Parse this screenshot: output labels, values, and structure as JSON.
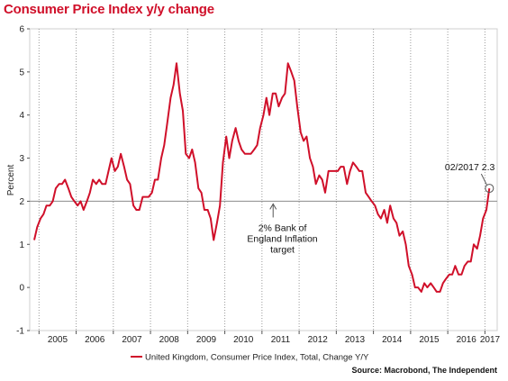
{
  "chart_data": {
    "type": "line",
    "title": "Consumer Price Index y/y change",
    "ylabel": "Percent",
    "ylim": [
      -1,
      6
    ],
    "yticks": [
      "-1",
      "0",
      "1",
      "2",
      "3",
      "4",
      "5",
      "6"
    ],
    "xlim": [
      2004.75,
      2017.33
    ],
    "xticks": [
      "2005",
      "2006",
      "2007",
      "2008",
      "2009",
      "2010",
      "2011",
      "2012",
      "2013",
      "2014",
      "2015",
      "2016",
      "2017"
    ],
    "grid": "vertical dotted",
    "reference_line": {
      "value": 2,
      "label": [
        "2% Bank of",
        "England Inflation",
        "target"
      ]
    },
    "end_annotation": "02/2017 2.3",
    "legend": {
      "placement": "bottom",
      "label": "United Kingdom, Consumer Price Index, Total, Change Y/Y"
    },
    "source": "Source: Macrobond, The Independent",
    "series": [
      {
        "name": "United Kingdom, Consumer Price Index, Total, Change Y/Y",
        "color": "#d0102a",
        "x": [
          2004.87,
          2004.95,
          2005.04,
          2005.12,
          2005.2,
          2005.29,
          2005.37,
          2005.45,
          2005.54,
          2005.62,
          2005.7,
          2005.79,
          2005.87,
          2005.95,
          2006.04,
          2006.12,
          2006.2,
          2006.29,
          2006.37,
          2006.45,
          2006.54,
          2006.62,
          2006.7,
          2006.79,
          2006.87,
          2006.95,
          2007.04,
          2007.12,
          2007.2,
          2007.29,
          2007.37,
          2007.45,
          2007.54,
          2007.62,
          2007.7,
          2007.79,
          2007.87,
          2007.95,
          2008.04,
          2008.12,
          2008.2,
          2008.29,
          2008.37,
          2008.45,
          2008.54,
          2008.62,
          2008.7,
          2008.79,
          2008.87,
          2008.95,
          2009.04,
          2009.12,
          2009.2,
          2009.29,
          2009.37,
          2009.45,
          2009.54,
          2009.62,
          2009.7,
          2009.79,
          2009.87,
          2009.95,
          2010.04,
          2010.12,
          2010.2,
          2010.29,
          2010.37,
          2010.45,
          2010.54,
          2010.62,
          2010.7,
          2010.79,
          2010.87,
          2010.95,
          2011.04,
          2011.12,
          2011.2,
          2011.29,
          2011.37,
          2011.45,
          2011.54,
          2011.62,
          2011.7,
          2011.79,
          2011.87,
          2011.95,
          2012.04,
          2012.12,
          2012.2,
          2012.29,
          2012.37,
          2012.45,
          2012.54,
          2012.62,
          2012.7,
          2012.79,
          2012.87,
          2012.95,
          2013.04,
          2013.12,
          2013.2,
          2013.29,
          2013.37,
          2013.45,
          2013.54,
          2013.62,
          2013.7,
          2013.79,
          2013.87,
          2013.95,
          2014.04,
          2014.12,
          2014.2,
          2014.29,
          2014.37,
          2014.45,
          2014.54,
          2014.62,
          2014.7,
          2014.79,
          2014.87,
          2014.95,
          2015.04,
          2015.12,
          2015.2,
          2015.29,
          2015.37,
          2015.45,
          2015.54,
          2015.62,
          2015.7,
          2015.79,
          2015.87,
          2015.95,
          2016.04,
          2016.12,
          2016.2,
          2016.29,
          2016.37,
          2016.45,
          2016.54,
          2016.62,
          2016.7,
          2016.79,
          2016.87,
          2016.95,
          2017.04,
          2017.12
        ],
        "values": [
          1.1,
          1.4,
          1.6,
          1.7,
          1.9,
          1.9,
          2.0,
          2.3,
          2.4,
          2.4,
          2.5,
          2.3,
          2.1,
          2.0,
          1.9,
          2.0,
          1.8,
          2.0,
          2.2,
          2.5,
          2.4,
          2.5,
          2.4,
          2.4,
          2.7,
          3.0,
          2.7,
          2.8,
          3.1,
          2.8,
          2.5,
          2.4,
          1.9,
          1.8,
          1.8,
          2.1,
          2.1,
          2.1,
          2.2,
          2.5,
          2.5,
          3.0,
          3.3,
          3.8,
          4.4,
          4.7,
          5.2,
          4.5,
          4.1,
          3.1,
          3.0,
          3.2,
          2.9,
          2.3,
          2.2,
          1.8,
          1.8,
          1.6,
          1.1,
          1.5,
          1.9,
          2.9,
          3.5,
          3.0,
          3.4,
          3.7,
          3.4,
          3.2,
          3.1,
          3.1,
          3.1,
          3.2,
          3.3,
          3.7,
          4.0,
          4.4,
          4.0,
          4.5,
          4.5,
          4.2,
          4.4,
          4.5,
          5.2,
          5.0,
          4.8,
          4.2,
          3.6,
          3.4,
          3.5,
          3.0,
          2.8,
          2.4,
          2.6,
          2.5,
          2.2,
          2.7,
          2.7,
          2.7,
          2.7,
          2.8,
          2.8,
          2.4,
          2.7,
          2.9,
          2.8,
          2.7,
          2.7,
          2.2,
          2.1,
          2.0,
          1.9,
          1.7,
          1.6,
          1.8,
          1.5,
          1.9,
          1.6,
          1.5,
          1.2,
          1.3,
          1.0,
          0.5,
          0.3,
          0.0,
          0.0,
          -0.1,
          0.1,
          0.0,
          0.1,
          0.0,
          -0.1,
          -0.1,
          0.1,
          0.2,
          0.3,
          0.3,
          0.5,
          0.3,
          0.3,
          0.5,
          0.6,
          0.6,
          1.0,
          0.9,
          1.2,
          1.6,
          1.8,
          2.3
        ]
      }
    ]
  }
}
